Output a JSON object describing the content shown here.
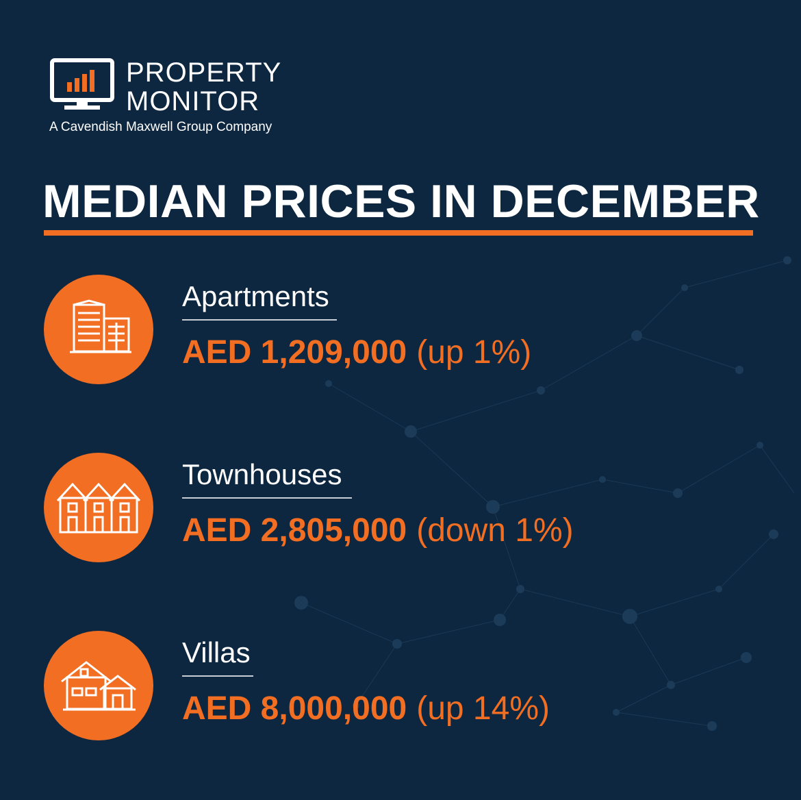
{
  "brand": {
    "name_line1": "PROPERTY",
    "name_line2": "MONITOR",
    "tagline": "A Cavendish Maxwell Group Company",
    "logo_icon": "monitor-bar-chart-icon"
  },
  "headline": "MEDIAN PRICES IN DECEMBER",
  "colors": {
    "background": "#0d2740",
    "accent": "#f26e22",
    "text": "#ffffff"
  },
  "items": [
    {
      "label": "Apartments",
      "amount": "AED 1,209,000",
      "change": "(up 1%)",
      "icon": "apartment-building-icon"
    },
    {
      "label": "Townhouses",
      "amount": "AED 2,805,000",
      "change": "(down 1%)",
      "icon": "townhouses-icon"
    },
    {
      "label": "Villas",
      "amount": "AED 8,000,000",
      "change": "(up 14%)",
      "icon": "villa-house-icon"
    }
  ]
}
